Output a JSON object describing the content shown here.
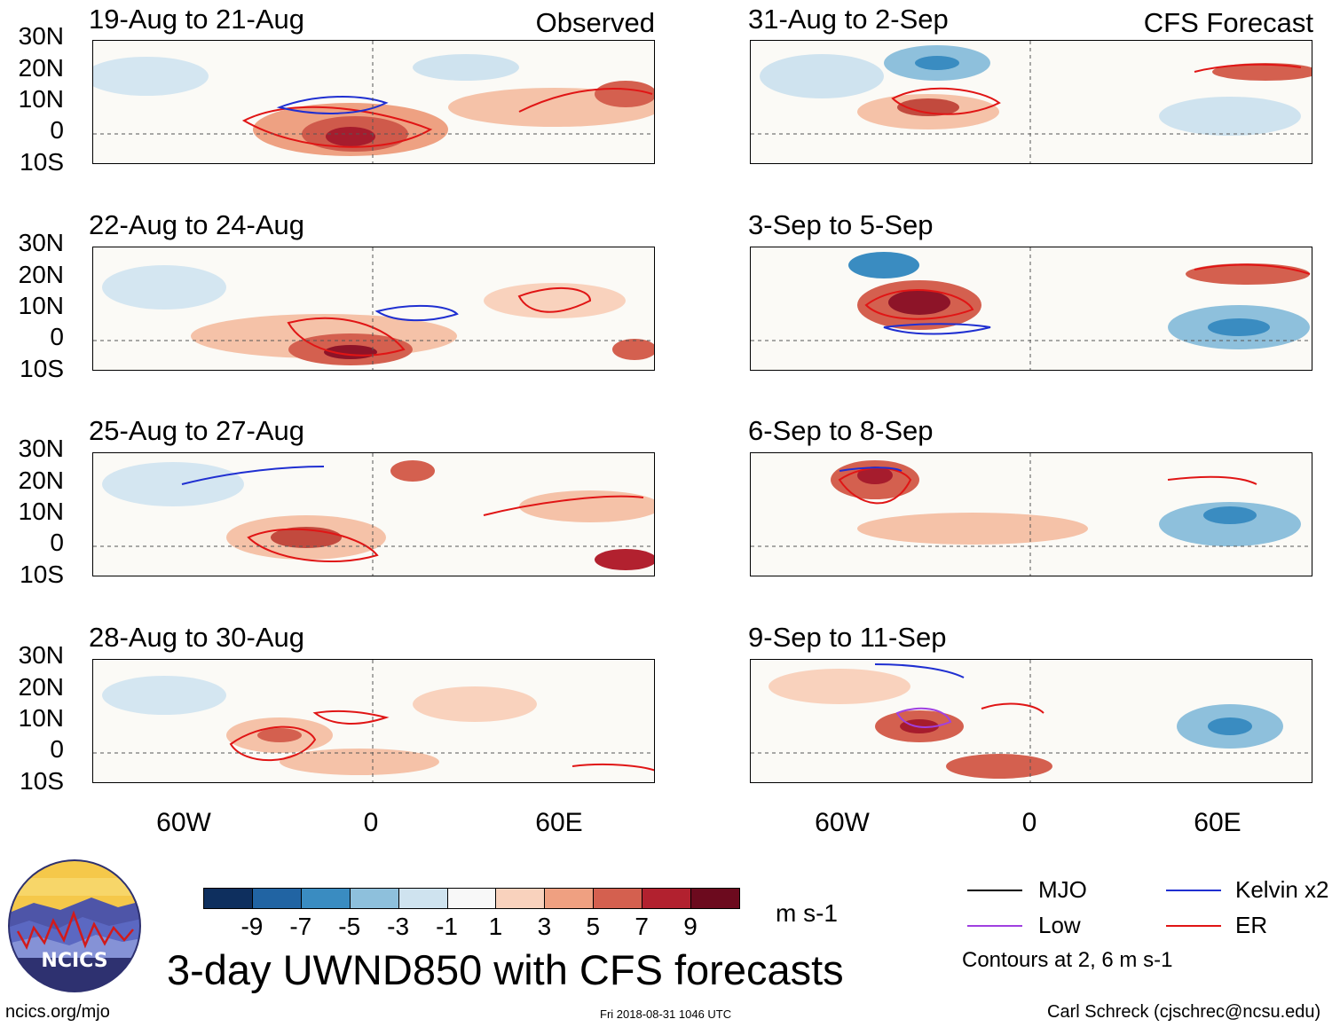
{
  "header": {
    "observed_label": "Observed",
    "forecast_label": "CFS Forecast"
  },
  "latitude_labels": [
    "30N",
    "20N",
    "10N",
    "0",
    "10S"
  ],
  "longitude_labels": [
    "60W",
    "0",
    "60E"
  ],
  "observed_panels": [
    {
      "title": "19-Aug to 21-Aug"
    },
    {
      "title": "22-Aug to 24-Aug"
    },
    {
      "title": "25-Aug to 27-Aug"
    },
    {
      "title": "28-Aug to 30-Aug"
    }
  ],
  "forecast_panels": [
    {
      "title": "31-Aug to 2-Sep"
    },
    {
      "title": "3-Sep to 5-Sep"
    },
    {
      "title": "6-Sep to 8-Sep"
    },
    {
      "title": "9-Sep to 11-Sep"
    }
  ],
  "colorbar": {
    "ticks": [
      "-9",
      "-7",
      "-5",
      "-3",
      "-1",
      "1",
      "3",
      "5",
      "7",
      "9"
    ],
    "colors": [
      "#0e2f5e",
      "#2164a3",
      "#3a8cc1",
      "#8ec0dc",
      "#cfe3ef",
      "#f8f8f8",
      "#f9d2bd",
      "#efa081",
      "#d4604f",
      "#b2212f",
      "#6c0a1e"
    ],
    "units": "m s-1"
  },
  "legend": {
    "items": [
      {
        "label": "MJO",
        "color": "#000000"
      },
      {
        "label": "Kelvin x2",
        "color": "#1f2fd1"
      },
      {
        "label": "Low",
        "color": "#a040e0"
      },
      {
        "label": "ER",
        "color": "#e01515"
      }
    ],
    "note": "Contours at 2, 6 m s-1"
  },
  "logo": {
    "text": "NCICS"
  },
  "footer": {
    "title": "3-day UWND850 with CFS forecasts",
    "url": "ncics.org/mjo",
    "timestamp": "Fri 2018-08-31 1046 UTC",
    "credit": "Carl Schreck (cjschrec@ncsu.edu)"
  }
}
